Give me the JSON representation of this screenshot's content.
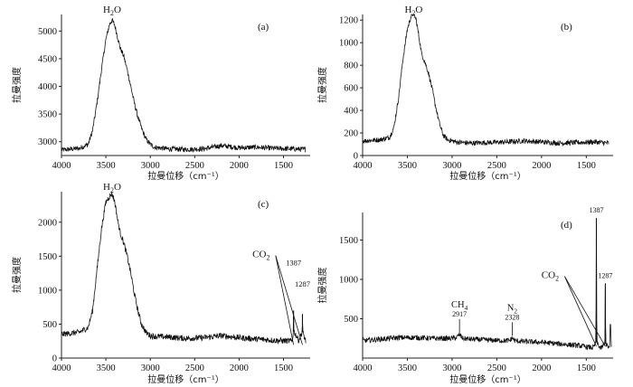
{
  "chart_data": [
    {
      "type": "line",
      "panel": "(a)",
      "xlabel": "拉曼位移（cm⁻¹）",
      "ylabel": "拉曼强度",
      "xlim": [
        4000,
        1200
      ],
      "ylim": [
        2750,
        5300
      ],
      "xticks": [
        4000,
        3500,
        3000,
        2500,
        2000,
        1500
      ],
      "yticks": [
        3000,
        3500,
        4000,
        4500,
        5000
      ],
      "series": [
        {
          "x": [
            4000,
            3800,
            3700,
            3650,
            3600,
            3550,
            3500,
            3460,
            3430,
            3400,
            3370,
            3340,
            3300,
            3260,
            3220,
            3180,
            3140,
            3100,
            3050,
            3000,
            2950,
            2800,
            2600,
            2400,
            2200,
            2000,
            1800,
            1600,
            1400,
            1250
          ],
          "y": [
            2850,
            2880,
            2950,
            3200,
            3700,
            4300,
            4850,
            5120,
            5200,
            5100,
            4900,
            4700,
            4550,
            4300,
            4000,
            3700,
            3450,
            3250,
            3050,
            2950,
            2900,
            2870,
            2860,
            2870,
            2930,
            2890,
            2900,
            2880,
            2870,
            2860
          ]
        }
      ],
      "annotations": [
        {
          "text": "H2O",
          "base": "H",
          "sub": "2",
          "tail": "O",
          "x": 3430,
          "y": 5200
        }
      ]
    },
    {
      "type": "line",
      "panel": "(b)",
      "xlabel": "拉曼位移（cm⁻¹）",
      "ylabel": "拉曼强度",
      "xlim": [
        4000,
        1200
      ],
      "ylim": [
        0,
        1250
      ],
      "xticks": [
        4000,
        3500,
        3000,
        2500,
        2000,
        1500
      ],
      "yticks": [
        0,
        200,
        400,
        600,
        800,
        1000,
        1200
      ],
      "series": [
        {
          "x": [
            4000,
            3800,
            3700,
            3650,
            3600,
            3550,
            3500,
            3460,
            3430,
            3400,
            3370,
            3340,
            3300,
            3260,
            3220,
            3180,
            3140,
            3100,
            3050,
            3000,
            2950,
            2800,
            2600,
            2400,
            2200,
            2000,
            1800,
            1600,
            1400,
            1250
          ],
          "y": [
            130,
            140,
            160,
            250,
            500,
            850,
            1120,
            1230,
            1260,
            1200,
            1050,
            900,
            820,
            720,
            580,
            420,
            280,
            180,
            140,
            130,
            120,
            110,
            115,
            120,
            130,
            120,
            110,
            115,
            120,
            110
          ]
        }
      ],
      "annotations": [
        {
          "text": "H2O",
          "base": "H",
          "sub": "2",
          "tail": "O",
          "x": 3430,
          "y": 1260
        }
      ]
    },
    {
      "type": "line",
      "panel": "(c)",
      "xlabel": "拉曼位移（cm⁻¹）",
      "ylabel": "拉曼强度",
      "xlim": [
        4000,
        1200
      ],
      "ylim": [
        0,
        2450
      ],
      "xticks": [
        4000,
        3500,
        3000,
        2500,
        2000,
        1500
      ],
      "yticks": [
        0,
        500,
        1000,
        1500,
        2000
      ],
      "series": [
        {
          "x": [
            4000,
            3800,
            3700,
            3650,
            3600,
            3550,
            3500,
            3460,
            3430,
            3400,
            3370,
            3340,
            3300,
            3260,
            3220,
            3180,
            3140,
            3100,
            3050,
            3000,
            2950,
            2800,
            2600,
            2400,
            2200,
            2000,
            1800,
            1600,
            1400,
            1390,
            1387,
            1384,
            1330,
            1290,
            1287,
            1284,
            1250
          ],
          "y": [
            350,
            380,
            450,
            700,
            1300,
            1900,
            2300,
            2380,
            2420,
            2300,
            2050,
            1850,
            1700,
            1500,
            1250,
            950,
            700,
            500,
            380,
            330,
            320,
            310,
            290,
            300,
            330,
            300,
            280,
            260,
            250,
            400,
            700,
            400,
            260,
            380,
            650,
            380,
            250
          ]
        }
      ],
      "annotations": [
        {
          "text": "H2O",
          "base": "H",
          "sub": "2",
          "tail": "O",
          "x": 3430,
          "y": 2420
        },
        {
          "text": "CO2",
          "base": "CO",
          "sub": "2",
          "tail": "",
          "x": 1650,
          "y": 750
        },
        {
          "text": "1387",
          "base": "1387",
          "sub": "",
          "tail": "",
          "x": 1387,
          "y": 700
        },
        {
          "text": "1287",
          "base": "1287",
          "sub": "",
          "tail": "",
          "x": 1287,
          "y": 650
        }
      ]
    },
    {
      "type": "line",
      "panel": "(d)",
      "xlabel": "拉曼位移（cm⁻¹）",
      "ylabel": "拉曼强度",
      "xlim": [
        4000,
        1200
      ],
      "ylim": [
        0,
        1850
      ],
      "xticks": [
        4000,
        3500,
        3000,
        2500,
        2000,
        1500
      ],
      "yticks": [
        500,
        1000,
        1500
      ],
      "series": [
        {
          "x": [
            4000,
            3800,
            3600,
            3400,
            3200,
            3000,
            2950,
            2917,
            2880,
            2800,
            2600,
            2400,
            2350,
            2328,
            2300,
            2200,
            2000,
            1800,
            1600,
            1420,
            1392,
            1387,
            1382,
            1340,
            1292,
            1287,
            1282,
            1240,
            1230,
            1220
          ],
          "y": [
            220,
            240,
            260,
            260,
            250,
            250,
            260,
            300,
            250,
            240,
            230,
            220,
            225,
            260,
            220,
            210,
            200,
            180,
            160,
            130,
            200,
            1780,
            200,
            120,
            180,
            950,
            180,
            120,
            500,
            130
          ]
        }
      ],
      "annotations": [
        {
          "text": "CH4",
          "base": "CH",
          "sub": "4",
          "tail": "",
          "x": 2917,
          "y": 300
        },
        {
          "text": "2917",
          "base": "2917",
          "sub": "",
          "tail": "",
          "x": 2917,
          "y": 300
        },
        {
          "text": "N2",
          "base": "N",
          "sub": "2",
          "tail": "",
          "x": 2328,
          "y": 260
        },
        {
          "text": "2328",
          "base": "2328",
          "sub": "",
          "tail": "",
          "x": 2328,
          "y": 260
        },
        {
          "text": "CO2",
          "base": "CO",
          "sub": "2",
          "tail": "",
          "x": 1600,
          "y": 900
        },
        {
          "text": "1387",
          "base": "1387",
          "sub": "",
          "tail": "",
          "x": 1387,
          "y": 1780
        },
        {
          "text": "1287",
          "base": "1287",
          "sub": "",
          "tail": "",
          "x": 1287,
          "y": 950
        }
      ]
    }
  ]
}
